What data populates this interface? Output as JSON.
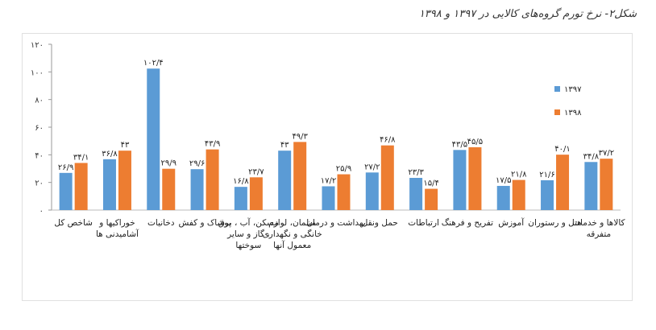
{
  "title": "شکل۲- نرخ تورم گروه‌های کالایی در ۱۳۹۷ و ۱۳۹۸",
  "chart_data": {
    "type": "bar",
    "categories": [
      "شاخص کل",
      "خوراکیها و آشامیدنی ها",
      "دخانیات",
      "پوشاک و کفش",
      "مسکن، آب ، برق ، گاز و سایر سوختها",
      "مبلمان، لوازم خانگی و نگهداری معمول آنها",
      "بهداشت و درمان",
      "حمل ونقل",
      "ارتباطات",
      "تفریح و فرهنگ",
      "آموزش",
      "هتل و رستوران",
      "کالاها و خدمات متفرقه"
    ],
    "series": [
      {
        "name": "۱۳۹۷",
        "color": "#5b9bd5",
        "values": [
          26.9,
          36.8,
          102.4,
          29.6,
          16.8,
          43,
          17.2,
          27.2,
          23.3,
          43.5,
          17.5,
          21.6,
          34.8
        ],
        "labels": [
          "۲۶/۹",
          "۳۶/۸",
          "۱۰۲/۴",
          "۲۹/۶",
          "۱۶/۸",
          "۴۳",
          "۱۷/۲",
          "۲۷/۲",
          "۲۳/۳",
          "۴۳/۵",
          "۱۷/۵",
          "۲۱/۶",
          "۳۴/۸"
        ]
      },
      {
        "name": "۱۳۹۸",
        "color": "#ed7d31",
        "values": [
          34.1,
          43,
          29.9,
          43.9,
          23.7,
          49.3,
          25.9,
          46.8,
          15.4,
          45.5,
          21.8,
          40.1,
          37.2
        ],
        "labels": [
          "۳۴/۱",
          "۴۳",
          "۲۹/۹",
          "۴۳/۹",
          "۲۳/۷",
          "۴۹/۳",
          "۲۵/۹",
          "۴۶/۸",
          "۱۵/۴",
          "۴۵/۵",
          "۲۱/۸",
          "۴۰/۱",
          "۳۷/۲"
        ]
      }
    ],
    "ylim": [
      0,
      120
    ],
    "yticks": [
      0,
      20,
      40,
      60,
      80,
      100,
      120
    ],
    "ytick_labels": [
      "۰",
      "۲۰",
      "۴۰",
      "۶۰",
      "۸۰",
      "۱۰۰",
      "۱۲۰"
    ],
    "grid": false,
    "legend": "right"
  }
}
